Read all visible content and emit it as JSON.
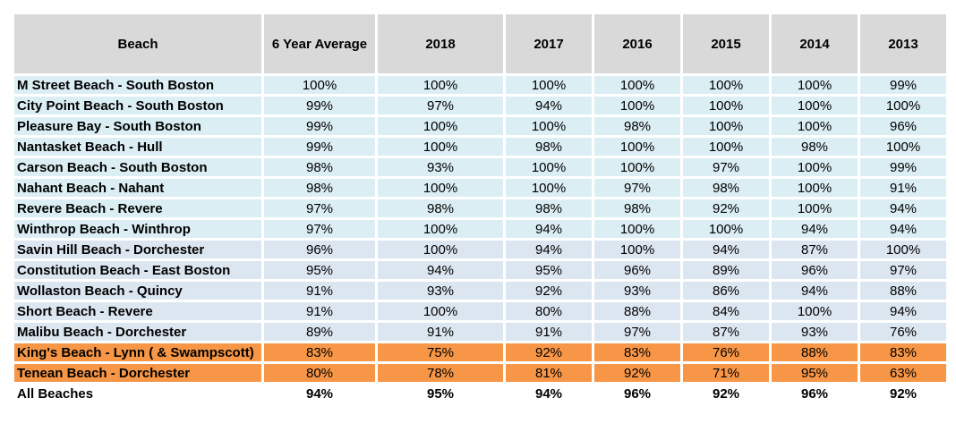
{
  "table": {
    "headers": [
      "Beach",
      "6 Year Average",
      "2018",
      "2017",
      "2016",
      "2015",
      "2014",
      "2013"
    ],
    "rows": [
      {
        "style": "blue",
        "cells": [
          "M Street Beach - South Boston",
          "100%",
          "100%",
          "100%",
          "100%",
          "100%",
          "100%",
          "99%"
        ]
      },
      {
        "style": "blue",
        "cells": [
          "City Point Beach - South Boston",
          "99%",
          "97%",
          "94%",
          "100%",
          "100%",
          "100%",
          "100%"
        ]
      },
      {
        "style": "blue",
        "cells": [
          "Pleasure Bay - South Boston",
          "99%",
          "100%",
          "100%",
          "98%",
          "100%",
          "100%",
          "96%"
        ]
      },
      {
        "style": "blue",
        "cells": [
          "Nantasket Beach - Hull",
          "99%",
          "100%",
          "98%",
          "100%",
          "100%",
          "98%",
          "100%"
        ]
      },
      {
        "style": "blue",
        "cells": [
          "Carson Beach - South Boston",
          "98%",
          "93%",
          "100%",
          "100%",
          "97%",
          "100%",
          "99%"
        ]
      },
      {
        "style": "blue",
        "cells": [
          "Nahant Beach - Nahant",
          "98%",
          "100%",
          "100%",
          "97%",
          "98%",
          "100%",
          "91%"
        ]
      },
      {
        "style": "blue",
        "cells": [
          "Revere Beach - Revere",
          "97%",
          "98%",
          "98%",
          "98%",
          "92%",
          "100%",
          "94%"
        ]
      },
      {
        "style": "blue",
        "cells": [
          "Winthrop Beach - Winthrop",
          "97%",
          "100%",
          "94%",
          "100%",
          "100%",
          "94%",
          "94%"
        ]
      },
      {
        "style": "gray",
        "cells": [
          "Savin Hill Beach - Dorchester",
          "96%",
          "100%",
          "94%",
          "100%",
          "94%",
          "87%",
          "100%"
        ]
      },
      {
        "style": "gray",
        "cells": [
          "Constitution Beach - East Boston",
          "95%",
          "94%",
          "95%",
          "96%",
          "89%",
          "96%",
          "97%"
        ]
      },
      {
        "style": "gray",
        "cells": [
          "Wollaston Beach - Quincy",
          "91%",
          "93%",
          "92%",
          "93%",
          "86%",
          "94%",
          "88%"
        ]
      },
      {
        "style": "gray",
        "cells": [
          "Short Beach - Revere",
          "91%",
          "100%",
          "80%",
          "88%",
          "84%",
          "100%",
          "94%"
        ]
      },
      {
        "style": "gray",
        "cells": [
          "Malibu Beach - Dorchester",
          "89%",
          "91%",
          "91%",
          "97%",
          "87%",
          "93%",
          "76%"
        ]
      },
      {
        "style": "orange",
        "cells": [
          "King's Beach - Lynn ( & Swampscott)",
          "83%",
          "75%",
          "92%",
          "83%",
          "76%",
          "88%",
          "83%"
        ]
      },
      {
        "style": "orange",
        "cells": [
          "Tenean Beach - Dorchester",
          "80%",
          "78%",
          "81%",
          "92%",
          "71%",
          "95%",
          "63%"
        ]
      },
      {
        "style": "total",
        "cells": [
          "All Beaches",
          "94%",
          "95%",
          "94%",
          "96%",
          "92%",
          "96%",
          "92%"
        ]
      }
    ]
  }
}
